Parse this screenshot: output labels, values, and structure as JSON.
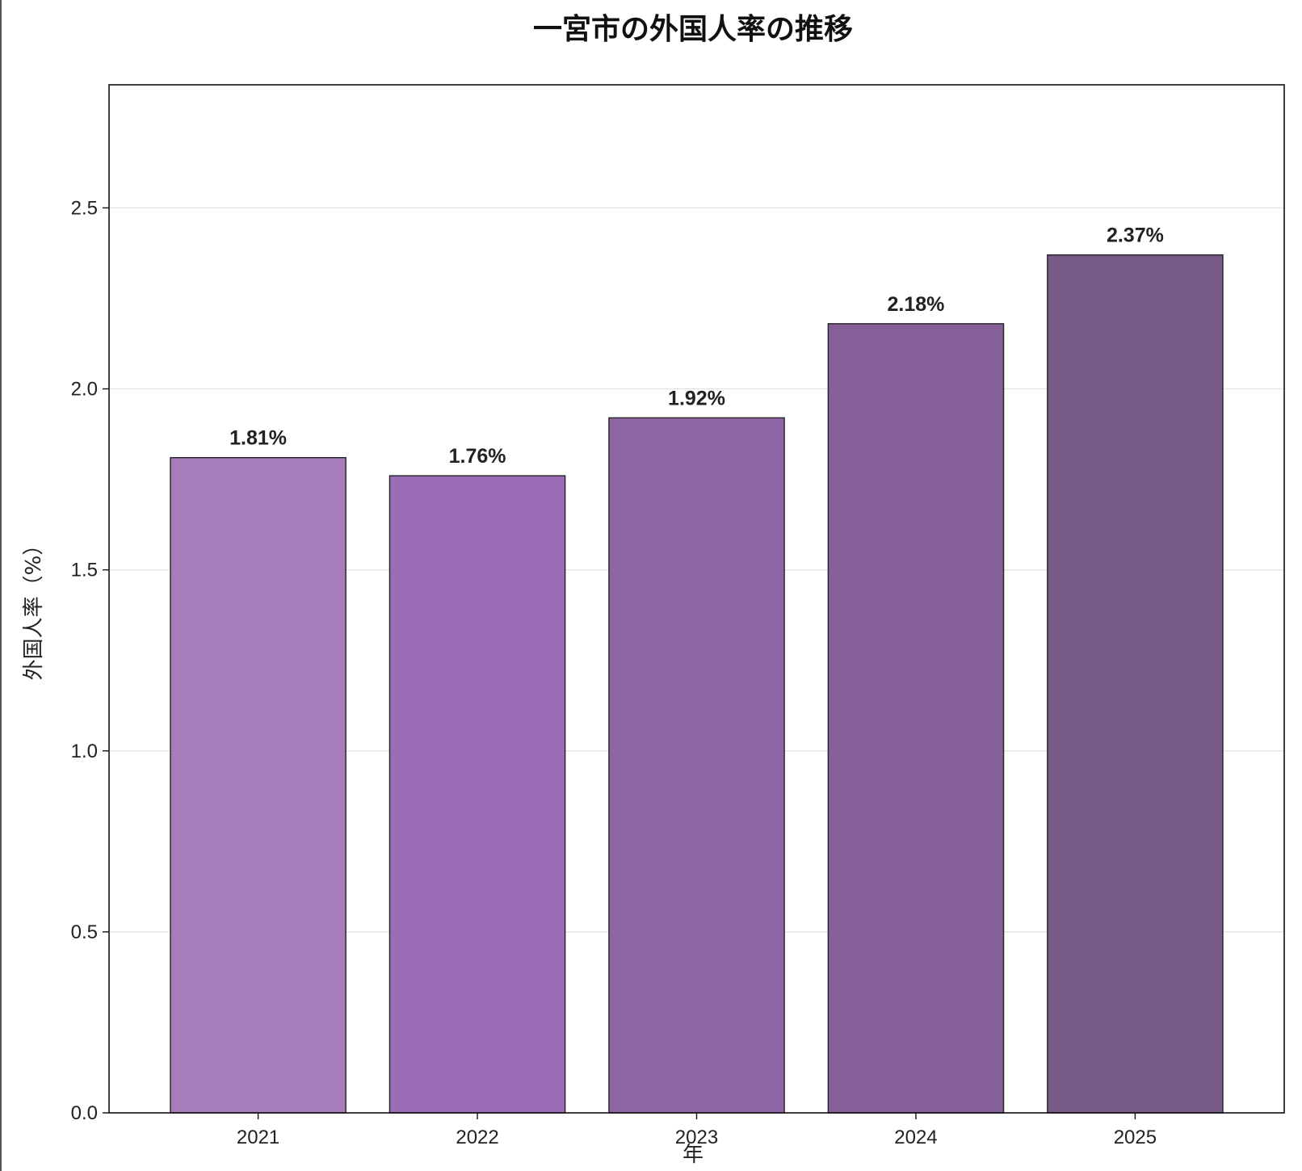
{
  "chart_data": {
    "type": "bar",
    "title": "一宮市の外国人率の推移",
    "xlabel": "年",
    "ylabel": "外国人率（%）",
    "categories": [
      "2021",
      "2022",
      "2023",
      "2024",
      "2025"
    ],
    "values": [
      1.81,
      1.76,
      1.92,
      2.18,
      2.37
    ],
    "data_labels": [
      "1.81%",
      "1.76%",
      "1.92%",
      "2.18%",
      "2.37%"
    ],
    "yticks": [
      "0.0",
      "0.5",
      "1.0",
      "1.5",
      "2.0",
      "2.5"
    ],
    "ylim": [
      0,
      2.84
    ],
    "grid": "horizontal",
    "colors": [
      "#a67cbb",
      "#9b6db6",
      "#8f65a6",
      "#845f98",
      "#785b87"
    ],
    "edge_color": "#222222"
  }
}
